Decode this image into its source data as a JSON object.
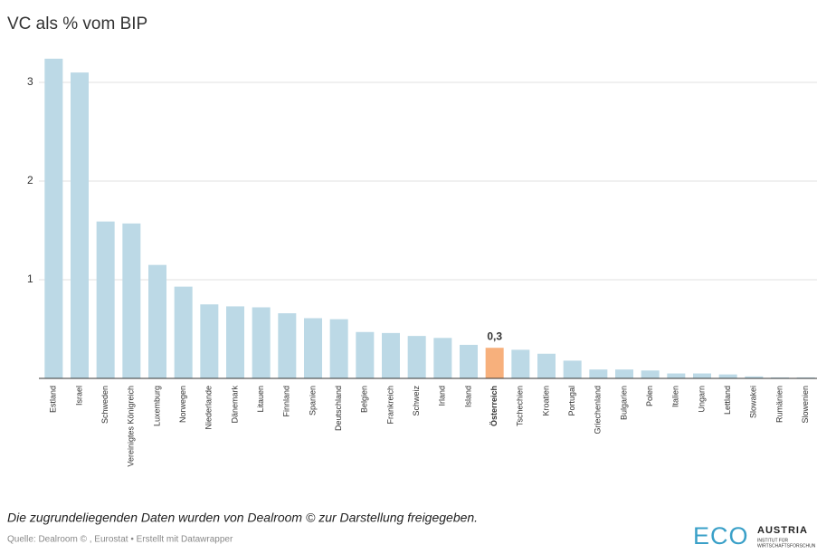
{
  "chart_data": {
    "type": "bar",
    "title": "VC als % vom BIP",
    "categories": [
      "Estland",
      "Israel",
      "Schweden",
      "Vereinigtes Königreich",
      "Luxemburg",
      "Norwegen",
      "Niederlande",
      "Dänemark",
      "Litauen",
      "Finnland",
      "Spanien",
      "Deutschland",
      "Belgien",
      "Frankreich",
      "Schweiz",
      "Irland",
      "Island",
      "Österreich",
      "Tschechien",
      "Kroatien",
      "Portugal",
      "Griechenland",
      "Bulgarien",
      "Polen",
      "Italien",
      "Ungarn",
      "Lettland",
      "Slowakei",
      "Rumänien",
      "Slowenien"
    ],
    "values": [
      3.24,
      3.1,
      1.59,
      1.57,
      1.15,
      0.93,
      0.75,
      0.73,
      0.72,
      0.66,
      0.61,
      0.6,
      0.47,
      0.46,
      0.43,
      0.41,
      0.34,
      0.31,
      0.29,
      0.25,
      0.18,
      0.09,
      0.09,
      0.08,
      0.05,
      0.05,
      0.04,
      0.02,
      0.01,
      0.01
    ],
    "value_labels": [
      null,
      null,
      null,
      null,
      null,
      null,
      null,
      null,
      null,
      null,
      null,
      null,
      null,
      null,
      null,
      null,
      null,
      "0,3",
      null,
      null,
      null,
      null,
      null,
      null,
      null,
      null,
      null,
      null,
      null,
      null
    ],
    "color": "#bcd9e6",
    "highlight_color": "#f7b07c",
    "ylim": [
      0,
      3.3
    ],
    "yticks": [
      1,
      2,
      3
    ],
    "grid": true,
    "note": "Die zugrundeliegenden Daten wurden von Dealroom © zur Darstellung freigegeben.",
    "source": "Quelle: Dealroom © , Eurostat • Erstellt mit Datawrapper"
  },
  "logo": {
    "mark": "ECO",
    "name": "AUSTRIA",
    "line1": "INSTITUT FÜR",
    "line2": "WIRTSCHAFTSFORSCHUN"
  }
}
